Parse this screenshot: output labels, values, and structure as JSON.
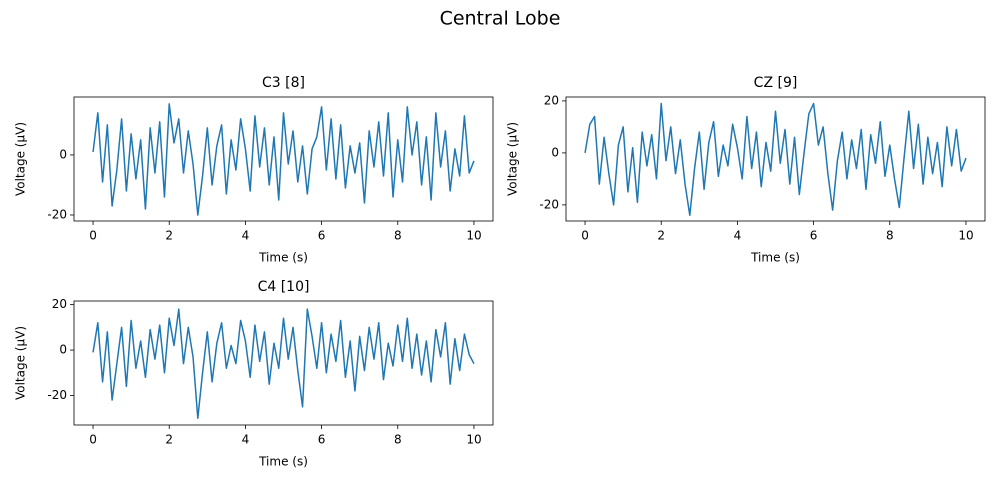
{
  "title": "Central Lobe",
  "chart_data": [
    {
      "type": "line",
      "title": "C3 [8]",
      "xlabel": "Time (s)",
      "ylabel": "Voltage (µV)",
      "color": "#1f77b4",
      "xlim": [
        -0.5,
        10.5
      ],
      "xticks": [
        0,
        2,
        4,
        6,
        8,
        10
      ],
      "ylim": [
        -22,
        19.3
      ],
      "yticks": [
        -20,
        0
      ],
      "x": [
        0,
        0.125,
        0.25,
        0.375,
        0.5,
        0.625,
        0.75,
        0.875,
        1,
        1.125,
        1.25,
        1.375,
        1.5,
        1.625,
        1.75,
        1.875,
        2,
        2.125,
        2.25,
        2.375,
        2.5,
        2.625,
        2.75,
        2.875,
        3,
        3.125,
        3.25,
        3.375,
        3.5,
        3.625,
        3.75,
        3.875,
        4,
        4.125,
        4.25,
        4.375,
        4.5,
        4.625,
        4.75,
        4.875,
        5,
        5.125,
        5.25,
        5.375,
        5.5,
        5.625,
        5.75,
        5.875,
        6,
        6.125,
        6.25,
        6.375,
        6.5,
        6.625,
        6.75,
        6.875,
        7,
        7.125,
        7.25,
        7.375,
        7.5,
        7.625,
        7.75,
        7.875,
        8,
        8.125,
        8.25,
        8.375,
        8.5,
        8.625,
        8.75,
        8.875,
        9,
        9.125,
        9.25,
        9.375,
        9.5,
        9.625,
        9.75,
        9.875,
        10
      ],
      "values": [
        1,
        14,
        -9,
        10,
        -17,
        -5,
        12,
        -12,
        7,
        -8,
        5,
        -18,
        9,
        -6,
        11,
        -14,
        17,
        4,
        12,
        -6,
        8,
        -3,
        -20,
        -7,
        9,
        -10,
        3,
        10,
        -13,
        5,
        -5,
        12,
        2,
        -12,
        13,
        -4,
        9,
        -10,
        6,
        -15,
        14,
        -3,
        8,
        -9,
        3,
        -13,
        2,
        6,
        16,
        -5,
        12,
        -8,
        10,
        -11,
        3,
        -6,
        4,
        -16,
        8,
        -4,
        11,
        -7,
        14,
        -14,
        5,
        -9,
        16,
        0,
        11,
        -10,
        6,
        -15,
        14,
        -4,
        8,
        -12,
        2,
        -7,
        13,
        -6,
        -2
      ]
    },
    {
      "type": "line",
      "title": "CZ [9]",
      "xlabel": "Time (s)",
      "ylabel": "Voltage (µV)",
      "color": "#1f77b4",
      "xlim": [
        -0.5,
        10.5
      ],
      "xticks": [
        0,
        2,
        4,
        6,
        8,
        10
      ],
      "ylim": [
        -26.2,
        21.5
      ],
      "yticks": [
        -20,
        0,
        20
      ],
      "x": [
        0,
        0.125,
        0.25,
        0.375,
        0.5,
        0.625,
        0.75,
        0.875,
        1,
        1.125,
        1.25,
        1.375,
        1.5,
        1.625,
        1.75,
        1.875,
        2,
        2.125,
        2.25,
        2.375,
        2.5,
        2.625,
        2.75,
        2.875,
        3,
        3.125,
        3.25,
        3.375,
        3.5,
        3.625,
        3.75,
        3.875,
        4,
        4.125,
        4.25,
        4.375,
        4.5,
        4.625,
        4.75,
        4.875,
        5,
        5.125,
        5.25,
        5.375,
        5.5,
        5.625,
        5.75,
        5.875,
        6,
        6.125,
        6.25,
        6.375,
        6.5,
        6.625,
        6.75,
        6.875,
        7,
        7.125,
        7.25,
        7.375,
        7.5,
        7.625,
        7.75,
        7.875,
        8,
        8.125,
        8.25,
        8.375,
        8.5,
        8.625,
        8.75,
        8.875,
        9,
        9.125,
        9.25,
        9.375,
        9.5,
        9.625,
        9.75,
        9.875,
        10
      ],
      "values": [
        0,
        11,
        14,
        -12,
        6,
        -8,
        -20,
        3,
        10,
        -15,
        2,
        -19,
        8,
        -5,
        7,
        -10,
        19,
        -3,
        10,
        -8,
        5,
        -12,
        -24,
        -6,
        8,
        -14,
        4,
        12,
        -9,
        3,
        -5,
        11,
        2,
        -10,
        14,
        -6,
        8,
        -13,
        4,
        -7,
        16,
        -4,
        9,
        -12,
        6,
        -16,
        0,
        15,
        19,
        3,
        10,
        -8,
        -22,
        -3,
        8,
        -10,
        5,
        -6,
        9,
        -14,
        7,
        -4,
        12,
        -9,
        3,
        -10,
        -21,
        -2,
        16,
        -6,
        11,
        -12,
        6,
        -8,
        4,
        -13,
        10,
        -5,
        9,
        -7,
        -2
      ]
    },
    {
      "type": "line",
      "title": "C4 [10]",
      "xlabel": "Time (s)",
      "ylabel": "Voltage (µV)",
      "color": "#1f77b4",
      "xlim": [
        -0.5,
        10.5
      ],
      "xticks": [
        0,
        2,
        4,
        6,
        8,
        10
      ],
      "ylim": [
        -33,
        21.6
      ],
      "yticks": [
        -20,
        0,
        20
      ],
      "x": [
        0,
        0.125,
        0.25,
        0.375,
        0.5,
        0.625,
        0.75,
        0.875,
        1,
        1.125,
        1.25,
        1.375,
        1.5,
        1.625,
        1.75,
        1.875,
        2,
        2.125,
        2.25,
        2.375,
        2.5,
        2.625,
        2.75,
        2.875,
        3,
        3.125,
        3.25,
        3.375,
        3.5,
        3.625,
        3.75,
        3.875,
        4,
        4.125,
        4.25,
        4.375,
        4.5,
        4.625,
        4.75,
        4.875,
        5,
        5.125,
        5.25,
        5.375,
        5.5,
        5.625,
        5.75,
        5.875,
        6,
        6.125,
        6.25,
        6.375,
        6.5,
        6.625,
        6.75,
        6.875,
        7,
        7.125,
        7.25,
        7.375,
        7.5,
        7.625,
        7.75,
        7.875,
        8,
        8.125,
        8.25,
        8.375,
        8.5,
        8.625,
        8.75,
        8.875,
        9,
        9.125,
        9.25,
        9.375,
        9.5,
        9.625,
        9.75,
        9.875,
        10
      ],
      "values": [
        -1,
        12,
        -14,
        8,
        -22,
        -6,
        10,
        -16,
        13,
        -8,
        4,
        -12,
        9,
        -4,
        11,
        -10,
        14,
        2,
        18,
        -6,
        10,
        -3,
        -30,
        -10,
        8,
        -14,
        3,
        12,
        -8,
        2,
        -6,
        13,
        4,
        -12,
        11,
        -5,
        8,
        -15,
        3,
        -8,
        14,
        -4,
        10,
        -9,
        -25,
        18,
        6,
        -8,
        12,
        -10,
        7,
        -5,
        13,
        -12,
        4,
        -18,
        6,
        -9,
        10,
        -4,
        12,
        -13,
        3,
        -7,
        11,
        -5,
        14,
        -8,
        7,
        -11,
        4,
        -14,
        9,
        -3,
        12,
        -15,
        5,
        -9,
        7,
        -2,
        -6
      ]
    }
  ]
}
